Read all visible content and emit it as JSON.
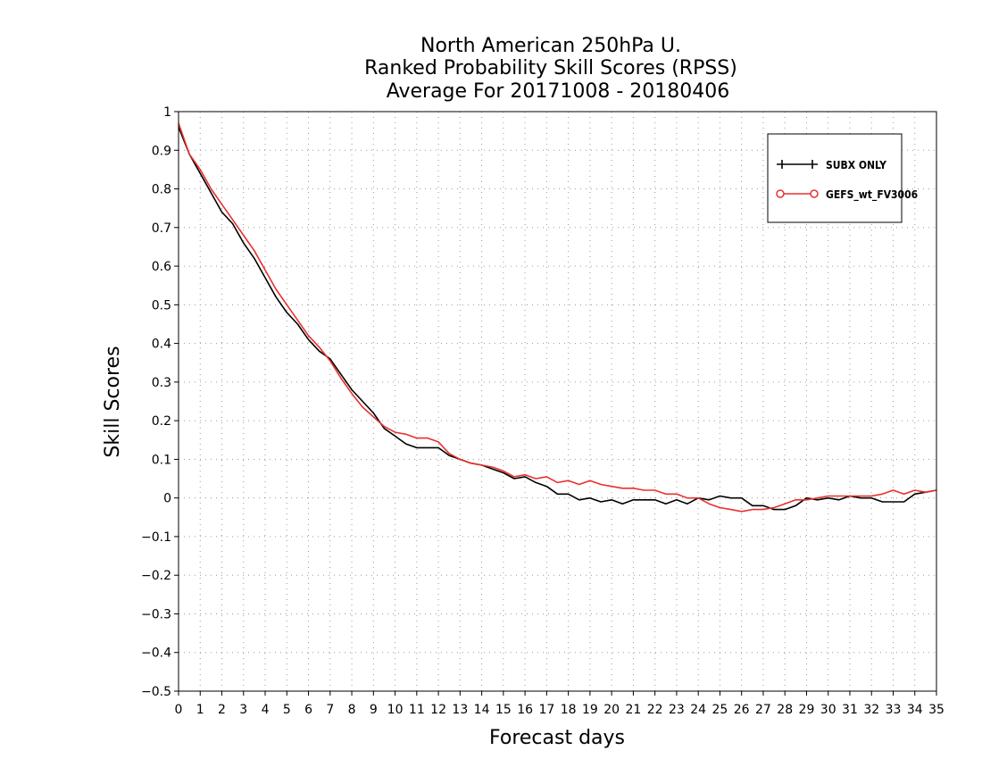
{
  "chart_data": {
    "type": "line",
    "title": [
      "North American 250hPa U.",
      "Ranked Probability Skill Scores (RPSS)",
      "Average For 20171008 - 20180406"
    ],
    "xlabel": "Forecast days",
    "ylabel": "Skill Scores",
    "xlim": [
      0,
      35
    ],
    "ylim": [
      -0.5,
      1
    ],
    "xticks": [
      "0",
      "1",
      "2",
      "3",
      "4",
      "5",
      "6",
      "7",
      "8",
      "9",
      "10",
      "11",
      "12",
      "13",
      "14",
      "15",
      "16",
      "17",
      "18",
      "19",
      "20",
      "21",
      "22",
      "23",
      "24",
      "25",
      "26",
      "27",
      "28",
      "29",
      "30",
      "31",
      "32",
      "33",
      "34",
      "35"
    ],
    "yticks": [
      "1",
      "0.9",
      "0.8",
      "0.7",
      "0.6",
      "0.5",
      "0.4",
      "0.3",
      "0.2",
      "0.1",
      "0",
      "−0.1",
      "−0.2",
      "−0.3",
      "−0.4",
      "−0.5"
    ],
    "grid": true,
    "legend_position": "top-right",
    "series": [
      {
        "name": "SUBX ONLY",
        "color": "#000000",
        "marker": "plus",
        "x": [
          0,
          0.5,
          1,
          1.5,
          2,
          2.5,
          3,
          3.5,
          4,
          4.5,
          5,
          5.5,
          6,
          6.5,
          7,
          7.5,
          8,
          8.5,
          9,
          9.5,
          10,
          10.5,
          11,
          11.5,
          12,
          12.5,
          13,
          13.5,
          14,
          14.5,
          15,
          15.5,
          16,
          16.5,
          17,
          17.5,
          18,
          18.5,
          19,
          19.5,
          20,
          20.5,
          21,
          21.5,
          22,
          22.5,
          23,
          23.5,
          24,
          24.5,
          25,
          25.5,
          26,
          26.5,
          27,
          27.5,
          28,
          28.5,
          29,
          29.5,
          30,
          30.5,
          31,
          31.5,
          32,
          32.5,
          33,
          33.5,
          34,
          34.5,
          35
        ],
        "values": [
          0.96,
          0.89,
          0.84,
          0.79,
          0.74,
          0.71,
          0.66,
          0.62,
          0.57,
          0.52,
          0.48,
          0.45,
          0.41,
          0.38,
          0.36,
          0.32,
          0.28,
          0.25,
          0.22,
          0.18,
          0.16,
          0.14,
          0.13,
          0.13,
          0.13,
          0.11,
          0.1,
          0.09,
          0.085,
          0.075,
          0.065,
          0.05,
          0.055,
          0.04,
          0.03,
          0.01,
          0.01,
          -0.005,
          0.0,
          -0.01,
          -0.005,
          -0.015,
          -0.005,
          -0.005,
          -0.005,
          -0.015,
          -0.005,
          -0.015,
          0.0,
          -0.005,
          0.005,
          0.0,
          0.0,
          -0.02,
          -0.02,
          -0.03,
          -0.03,
          -0.02,
          0.0,
          -0.005,
          0.0,
          -0.005,
          0.005,
          0.0,
          0.0,
          -0.01,
          -0.01,
          -0.01,
          0.01,
          0.015,
          0.02
        ]
      },
      {
        "name": "GEFS_wt_FV3006",
        "color": "#e8302f",
        "marker": "circle",
        "x": [
          0,
          0.5,
          1,
          1.5,
          2,
          2.5,
          3,
          3.5,
          4,
          4.5,
          5,
          5.5,
          6,
          6.5,
          7,
          7.5,
          8,
          8.5,
          9,
          9.5,
          10,
          10.5,
          11,
          11.5,
          12,
          12.5,
          13,
          13.5,
          14,
          14.5,
          15,
          15.5,
          16,
          16.5,
          17,
          17.5,
          18,
          18.5,
          19,
          19.5,
          20,
          20.5,
          21,
          21.5,
          22,
          22.5,
          23,
          23.5,
          24,
          24.5,
          25,
          25.5,
          26,
          26.5,
          27,
          27.5,
          28,
          28.5,
          29,
          29.5,
          30,
          30.5,
          31,
          31.5,
          32,
          32.5,
          33,
          33.5,
          34,
          34.5,
          35
        ],
        "values": [
          0.97,
          0.89,
          0.85,
          0.8,
          0.76,
          0.72,
          0.68,
          0.64,
          0.59,
          0.54,
          0.5,
          0.46,
          0.42,
          0.39,
          0.355,
          0.31,
          0.27,
          0.235,
          0.21,
          0.185,
          0.17,
          0.165,
          0.155,
          0.155,
          0.145,
          0.115,
          0.1,
          0.09,
          0.085,
          0.08,
          0.07,
          0.055,
          0.06,
          0.05,
          0.055,
          0.04,
          0.045,
          0.035,
          0.045,
          0.035,
          0.03,
          0.025,
          0.025,
          0.02,
          0.02,
          0.01,
          0.01,
          0.0,
          0.0,
          -0.015,
          -0.025,
          -0.03,
          -0.035,
          -0.03,
          -0.03,
          -0.025,
          -0.015,
          -0.005,
          -0.005,
          0.0,
          0.005,
          0.005,
          0.005,
          0.005,
          0.005,
          0.01,
          0.02,
          0.01,
          0.02,
          0.015,
          0.02
        ]
      }
    ]
  }
}
